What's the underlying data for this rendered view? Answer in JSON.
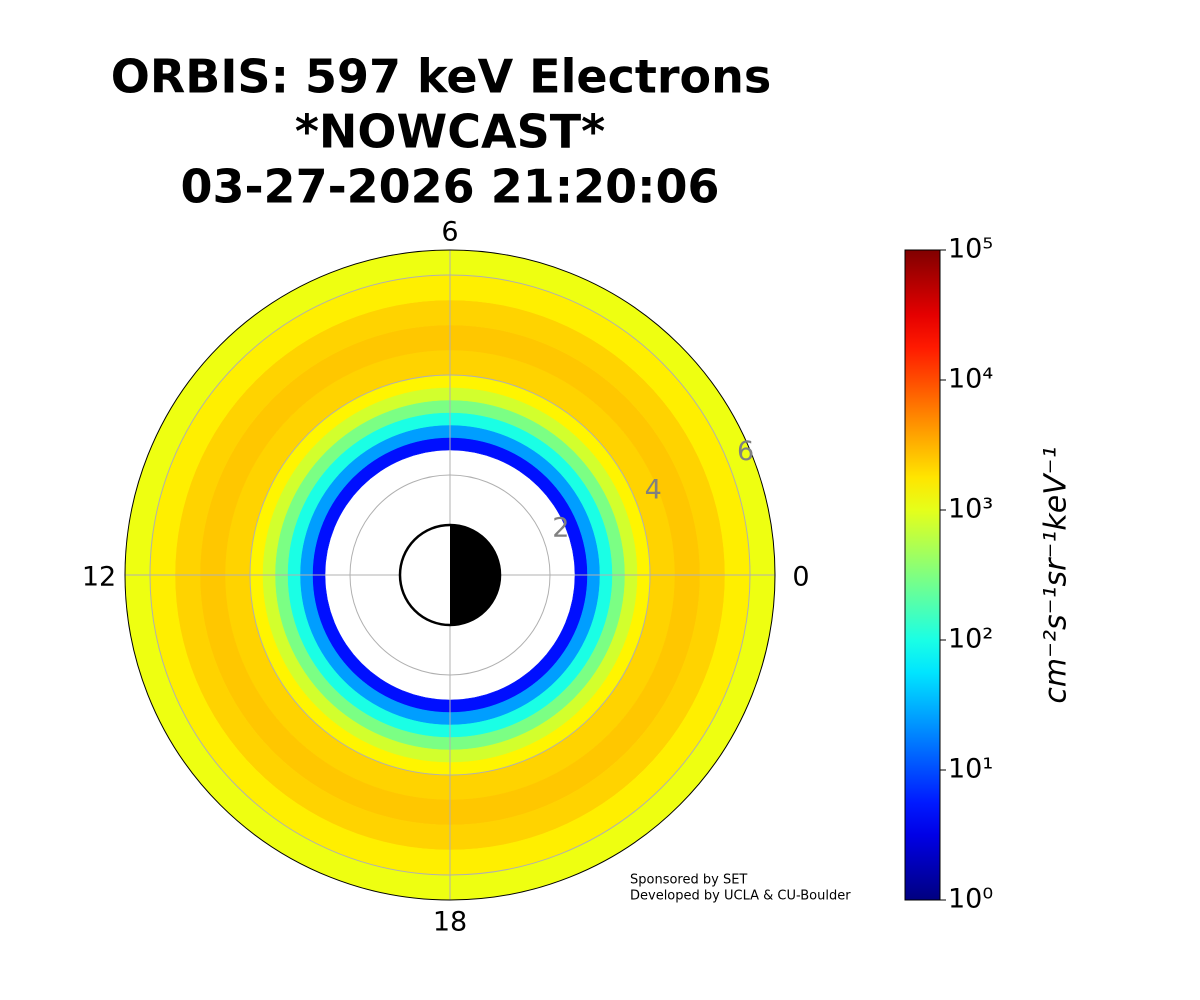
{
  "chart_data": {
    "type": "polar_heatmap",
    "title_lines": [
      "ORBIS: 597 keV Electrons",
      "*NOWCAST*",
      "03-27-2026 21:20:06"
    ],
    "r_bins": [
      2.5,
      2.75,
      3.0,
      3.25,
      3.5,
      3.75,
      4.0,
      4.5,
      5.0,
      5.5,
      6.0,
      6.5
    ],
    "values": [
      5,
      25,
      100,
      300,
      800,
      1500,
      2200,
      2500,
      2200,
      1600,
      1100
    ],
    "rlim": [
      0,
      6.5
    ],
    "rticks": [
      2,
      4,
      6
    ],
    "thetalim": [
      0,
      24
    ],
    "theta_ticks": [
      0,
      6,
      12,
      18
    ],
    "grid": true,
    "colormap": "jet",
    "colorbar": {
      "label": "cm⁻²s⁻¹sr⁻¹keV⁻¹",
      "log": true,
      "clim": [
        1,
        100000
      ],
      "ticks": [
        {
          "value": 1,
          "label": "10⁰"
        },
        {
          "value": 10,
          "label": "10¹"
        },
        {
          "value": 100,
          "label": "10²"
        },
        {
          "value": 1000,
          "label": "10³"
        },
        {
          "value": 10000,
          "label": "10⁴"
        },
        {
          "value": 100000,
          "label": "10⁵"
        }
      ]
    },
    "annotations": [
      "Sponsored by SET",
      "Developed by UCLA & CU-Boulder"
    ]
  }
}
